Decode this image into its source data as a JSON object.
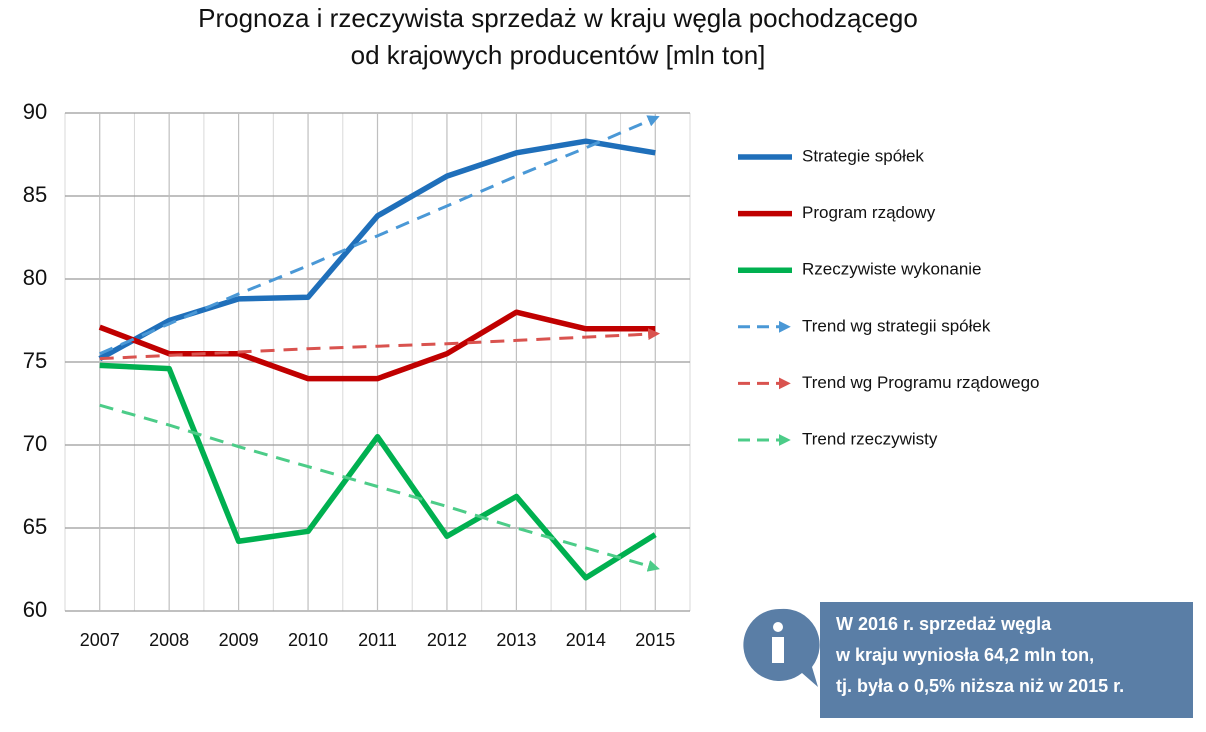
{
  "chart_data": {
    "type": "line",
    "title_lines": [
      "Prognoza i rzeczywista sprzedaż w kraju węgla pochodzącego",
      "od krajowych producentów [mln ton]"
    ],
    "categories": [
      "2007",
      "2008",
      "2009",
      "2010",
      "2011",
      "2012",
      "2013",
      "2014",
      "2015"
    ],
    "ylim": [
      60,
      90
    ],
    "yticks": [
      60,
      65,
      70,
      75,
      80,
      85,
      90
    ],
    "grid": true,
    "legend": "right",
    "series": [
      {
        "name": "Strategie spółek",
        "color": "#1f6fba",
        "dashed": false,
        "values": [
          75.2,
          77.5,
          78.8,
          78.9,
          83.8,
          86.2,
          87.6,
          88.3,
          87.6
        ]
      },
      {
        "name": "Program rządowy",
        "color": "#c00000",
        "dashed": false,
        "values": [
          77.1,
          75.5,
          75.5,
          74.0,
          74.0,
          75.5,
          78.0,
          77.0,
          77.0
        ]
      },
      {
        "name": "Rzeczywiste wykonanie",
        "color": "#00b050",
        "dashed": false,
        "values": [
          74.8,
          74.6,
          64.2,
          64.8,
          70.5,
          64.5,
          66.9,
          62.0,
          64.6
        ]
      },
      {
        "name": "Trend wg strategii spółek",
        "color": "#4a98d6",
        "dashed": true,
        "values": [
          75.5,
          77.3,
          79.1,
          80.8,
          82.6,
          84.4,
          86.2,
          87.9,
          89.7
        ]
      },
      {
        "name": "Trend wg Programu rządowego",
        "color": "#d9534f",
        "dashed": true,
        "values": [
          75.2,
          75.4,
          75.6,
          75.8,
          75.95,
          76.1,
          76.3,
          76.5,
          76.7
        ]
      },
      {
        "name": "Trend rzeczywisty",
        "color": "#4ccc88",
        "dashed": true,
        "values": [
          72.4,
          71.2,
          69.9,
          68.7,
          67.5,
          66.3,
          65.0,
          63.8,
          62.6
        ]
      }
    ],
    "annotation_lines": [
      "W 2016 r. sprzedaż węgla",
      "w kraju wyniosła 64,2 mln ton,",
      "tj. była o 0,5% niższa niż w 2015 r."
    ]
  }
}
